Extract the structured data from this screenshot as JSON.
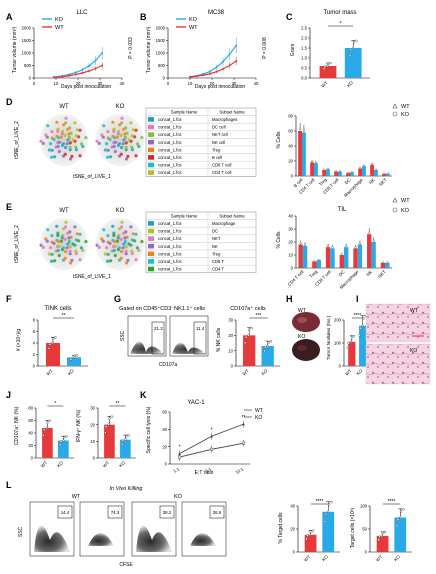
{
  "labels": {
    "A": "A",
    "B": "B",
    "C": "C",
    "D": "D",
    "E": "E",
    "F": "F",
    "G": "G",
    "H": "H",
    "I": "I",
    "J": "J",
    "K": "K",
    "L": "L"
  },
  "panelA": {
    "title": "LLC",
    "ylabel": "Tumor volume (mm³)",
    "xlabel": "Days post innoculation",
    "legend": [
      "KO",
      "WT"
    ],
    "pvalue": "P = 0.033",
    "yticks": [
      "0",
      "500",
      "1000",
      "1500",
      "2000"
    ],
    "xticks": [
      "0",
      "10",
      "20",
      "30",
      "40"
    ]
  },
  "panelB": {
    "title": "MC38",
    "ylabel": "Tumor volume (mm³)",
    "xlabel": "Days post innoculation",
    "legend": [
      "KO",
      "WT"
    ],
    "pvalue": "P = 0.008",
    "yticks": [
      "0",
      "500",
      "1000",
      "1500",
      "2000"
    ],
    "xticks": [
      "0",
      "10",
      "20",
      "30",
      "40"
    ]
  },
  "panelC": {
    "title": "Tumor mass",
    "ylabel": "Gram",
    "sig": "*",
    "yticks": [
      "0.0",
      "0.5",
      "1.0",
      "1.5",
      "2.0",
      "2.5"
    ],
    "groups": [
      "WT",
      "KO"
    ]
  },
  "panelD": {
    "tsne_wt": "WT",
    "tsne_ko": "KO",
    "xlabel": "tSNE_of_LIVE_1",
    "ylabel": "tSNE_of_LIVE_2",
    "table_head": [
      "Sample Name",
      "Subset Name"
    ],
    "table_rows": [
      [
        "concat_1.fcs",
        "Macrophages"
      ],
      [
        "concat_1.fcs",
        "DC cell"
      ],
      [
        "concat_1.fcs",
        "NKT cell"
      ],
      [
        "concat_1.fcs",
        "NK cell"
      ],
      [
        "concat_1.fcs",
        "Treg"
      ],
      [
        "concat_1.fcs",
        "B cell"
      ],
      [
        "concat_1.fcs",
        "CD8 T cell"
      ],
      [
        "concat_1.fcs",
        "CD4 T cell"
      ]
    ],
    "row_colors": [
      "#1f9fbf",
      "#e377c2",
      "#7fbf3f",
      "#9467bd",
      "#ff7f0e",
      "#d62728",
      "#17becf",
      "#bcbd22"
    ],
    "bar_ylabel": "% Cells",
    "bar_categories": [
      "B cell",
      "CD4 T cell",
      "Treg",
      "CD8 T cell",
      "DC",
      "Macrophage",
      "NK",
      "NKT"
    ],
    "legend": [
      "WT",
      "KO"
    ],
    "yticks": [
      "0",
      "20",
      "40",
      "60",
      "80"
    ]
  },
  "panelE": {
    "tsne_wt": "WT",
    "tsne_ko": "KO",
    "xlabel": "tSNE_of_LIVE_1",
    "ylabel": "tSNE_of_LIVE_2",
    "table_head": [
      "Sample Name",
      "Subset Name"
    ],
    "table_rows": [
      [
        "concat_1.fcs",
        "Macrophage"
      ],
      [
        "concat_1.fcs",
        "DC"
      ],
      [
        "concat_1.fcs",
        "NKT"
      ],
      [
        "concat_1.fcs",
        "NK"
      ],
      [
        "concat_1.fcs",
        "Treg"
      ],
      [
        "concat_1.fcs",
        "CD8 T"
      ],
      [
        "concat_1.fcs",
        "CD4 T"
      ]
    ],
    "row_colors": [
      "#1f9fbf",
      "#bcbd22",
      "#e377c2",
      "#9467bd",
      "#ff7f0e",
      "#17becf",
      "#2ca02c"
    ],
    "bar_title": "TIL",
    "bar_ylabel": "% Cells",
    "bar_categories": [
      "CD4 T cell",
      "Treg",
      "CD8 T cell",
      "DC",
      "Macrophage",
      "NK",
      "NKT"
    ],
    "legend": [
      "WT",
      "KO"
    ],
    "yticks": [
      "0",
      "10",
      "20",
      "30",
      "40"
    ]
  },
  "panelF": {
    "title": "TINK cells",
    "ylabel": "# (×10⁵)/g",
    "sig": "**",
    "groups": [
      "WT",
      "KO"
    ],
    "yticks": [
      "0",
      "2",
      "4",
      "6",
      "8"
    ]
  },
  "panelG": {
    "header": "Gated on CD45⁺CD3⁻NK1.1⁺ cells",
    "gate_wt": "21.2",
    "gate_ko": "11.4",
    "xlabel": "CD107a",
    "ylabel": "SSC",
    "bar_title": "CD107a⁺ cells",
    "bar_ylabel": "% NK cells",
    "sig": "***",
    "groups": [
      "WT",
      "KO"
    ],
    "yticks": [
      "0",
      "10",
      "20",
      "30"
    ]
  },
  "panelH": {
    "wt": "WT",
    "ko": "KO",
    "bar_ylabel": "Tumor Nodules (No.)",
    "sig": "****",
    "groups": [
      "WT",
      "KO"
    ],
    "yticks": [
      "0",
      "100",
      "200"
    ]
  },
  "panelI": {
    "wt": "WT",
    "ko": "KO"
  },
  "panelJ": {
    "left_ylabel": "CD107a⁺ NK (%)",
    "right_ylabel": "IFN-γ⁺ NK (%)",
    "left_sig": "*",
    "right_sig": "**",
    "groups": [
      "WT",
      "KO"
    ],
    "left_yticks": [
      "0",
      "20",
      "40",
      "60",
      "80"
    ],
    "right_yticks": [
      "0",
      "10",
      "20",
      "30"
    ]
  },
  "panelK": {
    "title": "YAC-1",
    "ylabel": "Specific cell lysis (%)",
    "xlabel": "E:T ratio",
    "xticks": [
      "1:1",
      "5:1",
      "10:1"
    ],
    "legend": [
      "WT",
      "KO"
    ],
    "sigs": [
      "*",
      "*",
      "**"
    ],
    "yticks": [
      "0",
      "20",
      "40",
      "60"
    ]
  },
  "panelL": {
    "header": "In Vivo Killing",
    "wt": "WT",
    "ko": "KO",
    "xlabel": "CFSE",
    "ylabel": "SSC",
    "gates": [
      "14.4",
      "74.3",
      "38.2",
      "26.6"
    ],
    "bar1_ylabel": "% Target cells",
    "bar2_ylabel": "Target cells (×10³)",
    "bar1_sig": "****",
    "bar2_sig": "****",
    "groups": [
      "WT",
      "KO"
    ],
    "bar1_yticks": [
      "0",
      "20",
      "40"
    ],
    "bar2_yticks": [
      "0",
      "50",
      "100"
    ]
  },
  "colors": {
    "wt": "#e8393a",
    "ko": "#29a9e8"
  },
  "chart_data": [
    {
      "type": "line",
      "title": "LLC",
      "xlabel": "Days post innoculation",
      "ylabel": "Tumor volume (mm³)",
      "x": [
        9,
        13,
        16,
        19,
        22,
        25,
        28,
        31
      ],
      "series": [
        {
          "name": "KO",
          "values": [
            40,
            80,
            140,
            220,
            330,
            480,
            700,
            1000
          ]
        },
        {
          "name": "WT",
          "values": [
            30,
            55,
            90,
            140,
            200,
            280,
            380,
            500
          ]
        }
      ],
      "xlim": [
        0,
        40
      ],
      "ylim": [
        0,
        2000
      ]
    },
    {
      "type": "line",
      "title": "MC38",
      "xlabel": "Days post innoculation",
      "ylabel": "Tumor volume (mm³)",
      "x": [
        10,
        13,
        16,
        19,
        22,
        25,
        28,
        31
      ],
      "series": [
        {
          "name": "KO",
          "values": [
            50,
            90,
            160,
            260,
            420,
            650,
            950,
            1300
          ]
        },
        {
          "name": "WT",
          "values": [
            40,
            70,
            110,
            170,
            250,
            360,
            500,
            680
          ]
        }
      ],
      "xlim": [
        0,
        40
      ],
      "ylim": [
        0,
        2000
      ]
    },
    {
      "type": "bar",
      "title": "Tumor mass",
      "ylabel": "Gram",
      "categories": [
        "WT",
        "KO"
      ],
      "values": [
        0.6,
        1.5
      ],
      "ylim": [
        0,
        2.5
      ]
    },
    {
      "type": "bar",
      "ylabel": "% Cells",
      "categories": [
        "B cell",
        "CD4 T cell",
        "Treg",
        "CD8 T cell",
        "DC",
        "Macrophage",
        "NK",
        "NKT"
      ],
      "series": [
        {
          "name": "WT",
          "values": [
            60,
            18,
            8,
            6,
            4,
            10,
            15,
            3
          ]
        },
        {
          "name": "KO",
          "values": [
            58,
            17,
            9,
            6,
            5,
            13,
            8,
            3
          ]
        }
      ],
      "ylim": [
        0,
        80
      ]
    },
    {
      "type": "bar",
      "title": "TIL",
      "ylabel": "% Cells",
      "categories": [
        "CD4 T cell",
        "Treg",
        "CD8 T cell",
        "DC",
        "Macrophage",
        "NK",
        "NKT"
      ],
      "series": [
        {
          "name": "WT",
          "values": [
            18,
            5,
            16,
            10,
            15,
            26,
            4
          ]
        },
        {
          "name": "KO",
          "values": [
            17,
            6,
            15,
            16,
            18,
            20,
            4
          ]
        }
      ],
      "ylim": [
        0,
        40
      ]
    },
    {
      "type": "bar",
      "title": "TINK cells",
      "ylabel": "# (×10⁵)/g",
      "categories": [
        "WT",
        "KO"
      ],
      "values": [
        4.0,
        1.5
      ],
      "ylim": [
        0,
        8
      ]
    },
    {
      "type": "bar",
      "title": "CD107a⁺ cells",
      "ylabel": "% NK cells",
      "categories": [
        "WT",
        "KO"
      ],
      "values": [
        20,
        13
      ],
      "ylim": [
        0,
        30
      ]
    },
    {
      "type": "bar",
      "ylabel": "Tumor Nodules (No.)",
      "categories": [
        "WT",
        "KO"
      ],
      "values": [
        105,
        175
      ],
      "ylim": [
        0,
        200
      ]
    },
    {
      "type": "bar",
      "ylabel": "CD107a⁺ NK (%)",
      "categories": [
        "WT",
        "KO"
      ],
      "values": [
        48,
        28
      ],
      "ylim": [
        0,
        80
      ]
    },
    {
      "type": "bar",
      "ylabel": "IFN-γ⁺ NK (%)",
      "categories": [
        "WT",
        "KO"
      ],
      "values": [
        20,
        11
      ],
      "ylim": [
        0,
        30
      ]
    },
    {
      "type": "line",
      "title": "YAC-1",
      "xlabel": "E:T ratio",
      "ylabel": "Specific cell lysis (%)",
      "x": [
        "1:1",
        "5:1",
        "10:1"
      ],
      "series": [
        {
          "name": "WT",
          "values": [
            12,
            32,
            46
          ]
        },
        {
          "name": "KO",
          "values": [
            8,
            17,
            24
          ]
        }
      ],
      "ylim": [
        0,
        60
      ]
    },
    {
      "type": "bar",
      "ylabel": "% Target cells",
      "categories": [
        "WT",
        "KO"
      ],
      "values": [
        15,
        35
      ],
      "ylim": [
        0,
        40
      ]
    },
    {
      "type": "bar",
      "ylabel": "Target cells (×10³)",
      "categories": [
        "WT",
        "KO"
      ],
      "values": [
        35,
        75
      ],
      "ylim": [
        0,
        100
      ]
    }
  ]
}
